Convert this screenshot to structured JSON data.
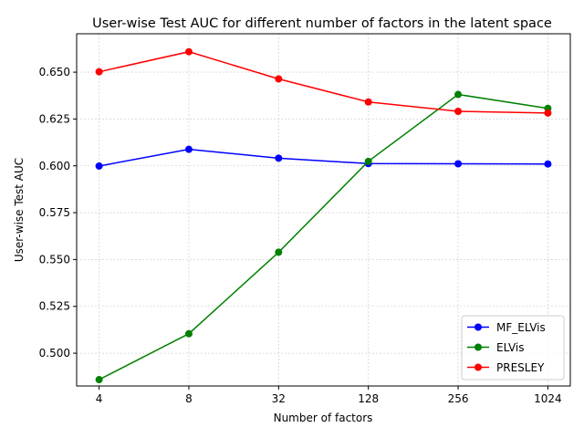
{
  "chart_data": {
    "type": "line",
    "title": "User-wise Test AUC for different number of factors in the latent space",
    "xlabel": "Number of factors",
    "ylabel": "User-wise Test AUC",
    "categories": [
      "4",
      "8",
      "32",
      "128",
      "256",
      "1024"
    ],
    "ylim": [
      0.4825,
      0.6705
    ],
    "yticks": [
      0.5,
      0.525,
      0.55,
      0.575,
      0.6,
      0.625,
      0.65
    ],
    "ytick_labels": [
      "0.500",
      "0.525",
      "0.550",
      "0.575",
      "0.600",
      "0.625",
      "0.650"
    ],
    "grid": true,
    "legend_position": "lower-right",
    "series": [
      {
        "name": "MF_ELVis",
        "color": "#0000ff",
        "values": [
          0.5999,
          0.6088,
          0.6041,
          0.6012,
          0.6011,
          0.601
        ]
      },
      {
        "name": "ELVis",
        "color": "#008000",
        "values": [
          0.4859,
          0.5104,
          0.5539,
          0.6024,
          0.6381,
          0.6307
        ]
      },
      {
        "name": "PRESLEY",
        "color": "#ff0000",
        "values": [
          0.6502,
          0.6609,
          0.6464,
          0.6341,
          0.6291,
          0.6282
        ]
      }
    ]
  }
}
